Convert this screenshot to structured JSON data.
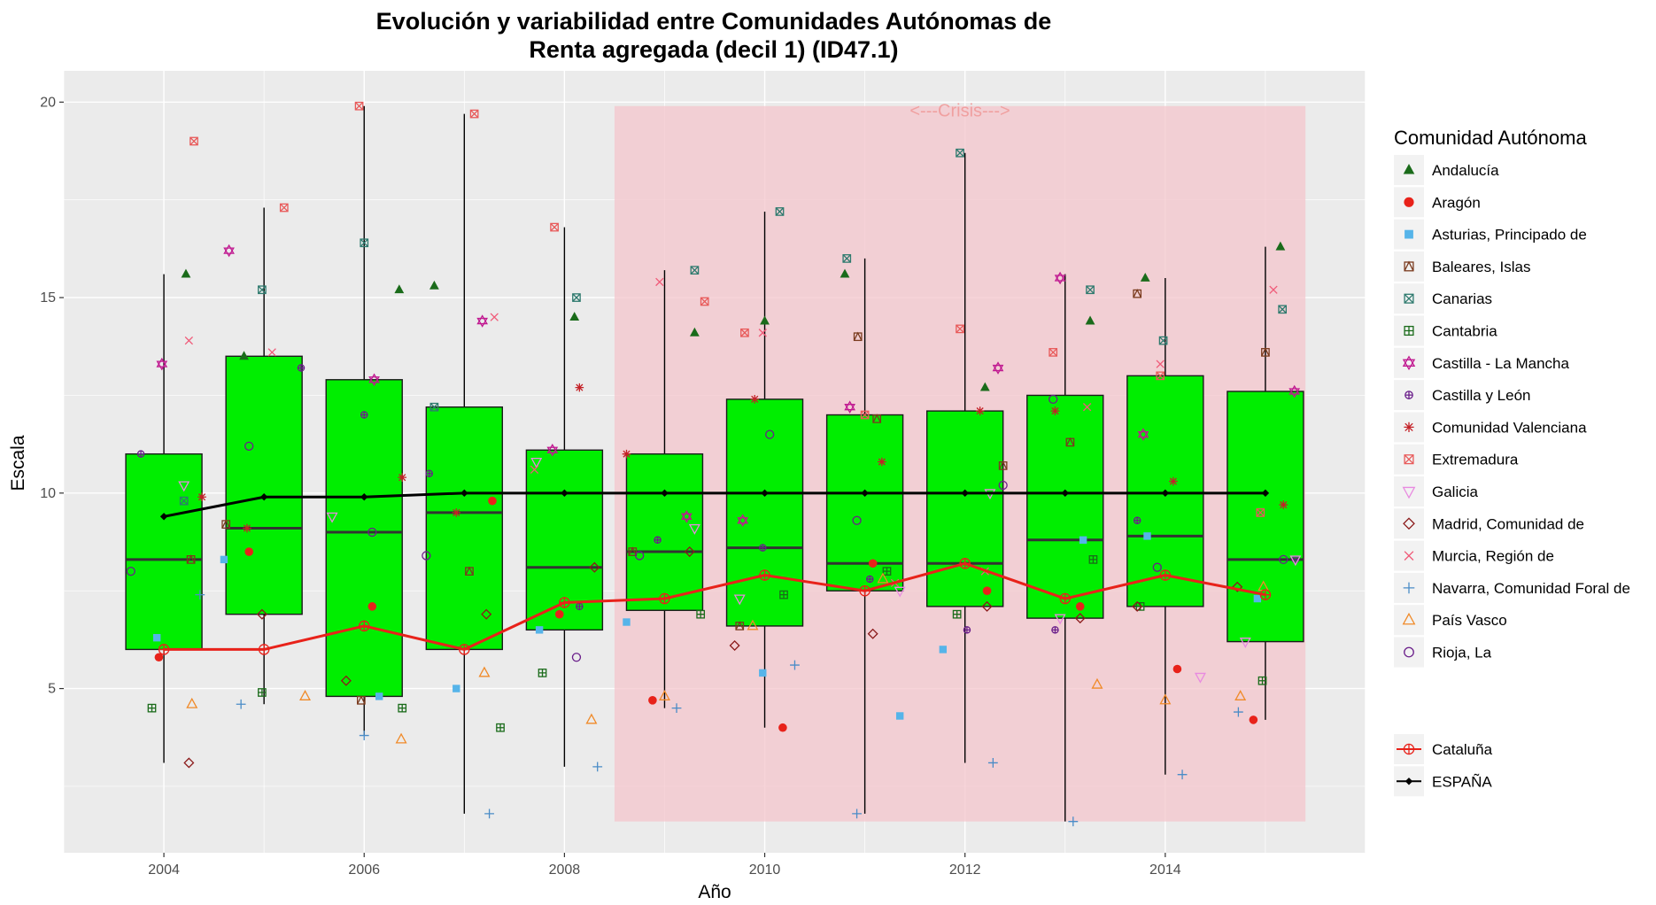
{
  "chart_data": {
    "type": "box",
    "title": [
      "Evolución y variabilidad entre Comunidades Autónomas de",
      "Renta agregada (decil 1) (ID47.1)"
    ],
    "xlabel": "Año",
    "ylabel": "Escala",
    "xlim": [
      2003.0,
      2016.0
    ],
    "ylim": [
      0.8,
      20.8
    ],
    "x_ticks": [
      2004,
      2006,
      2008,
      2010,
      2012,
      2014
    ],
    "y_ticks": [
      5,
      10,
      15,
      20
    ],
    "grid": true,
    "background_color": "#ebebeb",
    "box_fill": "#00ee00",
    "crisis_band": {
      "label": "<---Crisis--->",
      "x_start": 2008.5,
      "x_end": 2015.4,
      "y_min": 1.6,
      "y_max": 19.9,
      "color": "#f4c6cc"
    },
    "boxes": [
      {
        "year": 2004,
        "min": 3.1,
        "q1": 6.0,
        "median": 8.3,
        "q3": 11.0,
        "max": 15.6
      },
      {
        "year": 2005,
        "min": 4.6,
        "q1": 6.9,
        "median": 9.1,
        "q3": 13.5,
        "max": 17.3
      },
      {
        "year": 2006,
        "min": 3.8,
        "q1": 4.8,
        "median": 9.0,
        "q3": 12.9,
        "max": 19.9
      },
      {
        "year": 2007,
        "min": 1.8,
        "q1": 6.0,
        "median": 9.5,
        "q3": 12.2,
        "max": 19.7
      },
      {
        "year": 2008,
        "min": 3.0,
        "q1": 6.5,
        "median": 8.1,
        "q3": 11.1,
        "max": 16.8
      },
      {
        "year": 2009,
        "min": 4.5,
        "q1": 7.0,
        "median": 8.5,
        "q3": 11.0,
        "max": 15.7
      },
      {
        "year": 2010,
        "min": 4.0,
        "q1": 6.6,
        "median": 8.6,
        "q3": 12.4,
        "max": 17.2
      },
      {
        "year": 2011,
        "min": 1.8,
        "q1": 7.5,
        "median": 8.2,
        "q3": 12.0,
        "max": 16.0
      },
      {
        "year": 2012,
        "min": 3.1,
        "q1": 7.1,
        "median": 8.2,
        "q3": 12.1,
        "max": 18.7
      },
      {
        "year": 2013,
        "min": 1.6,
        "q1": 6.8,
        "median": 8.8,
        "q3": 12.5,
        "max": 15.6
      },
      {
        "year": 2014,
        "min": 2.8,
        "q1": 7.1,
        "median": 8.9,
        "q3": 13.0,
        "max": 15.5
      },
      {
        "year": 2015,
        "min": 4.2,
        "q1": 6.2,
        "median": 8.3,
        "q3": 12.6,
        "max": 16.3
      }
    ],
    "lines": [
      {
        "name": "ESPAÑA",
        "color": "#000000",
        "shape": "diamond",
        "x": [
          2004,
          2005,
          2006,
          2007,
          2008,
          2009,
          2010,
          2011,
          2012,
          2013,
          2014,
          2015
        ],
        "y": [
          9.4,
          9.9,
          9.9,
          10.0,
          10.0,
          10.0,
          10.0,
          10.0,
          10.0,
          10.0,
          10.0,
          10.0
        ]
      },
      {
        "name": "Cataluña",
        "color": "#e8221a",
        "shape": "circleplus",
        "x": [
          2004,
          2005,
          2006,
          2007,
          2008,
          2009,
          2010,
          2011,
          2012,
          2013,
          2014,
          2015
        ],
        "y": [
          6.0,
          6.0,
          6.6,
          6.0,
          7.2,
          7.3,
          7.9,
          7.5,
          8.2,
          7.3,
          7.9,
          7.4
        ]
      }
    ],
    "series": [
      {
        "name": "Andalucía",
        "color": "#1a6b1a",
        "shape": "triangle-filled",
        "x": [
          2004.22,
          2004.8,
          2006.35,
          2006.7,
          2008.1,
          2009.3,
          2010.0,
          2010.8,
          2012.2,
          2013.25,
          2013.8,
          2015.15
        ],
        "y": [
          15.6,
          13.5,
          15.2,
          15.3,
          14.5,
          14.1,
          14.4,
          15.6,
          12.7,
          14.4,
          15.5,
          16.3
        ]
      },
      {
        "name": "Aragón",
        "color": "#e8221a",
        "shape": "circle-filled",
        "x": [
          2003.95,
          2004.85,
          2006.08,
          2007.28,
          2007.95,
          2008.88,
          2010.18,
          2011.08,
          2012.22,
          2013.15,
          2014.12,
          2014.88
        ],
        "y": [
          5.8,
          8.5,
          7.1,
          9.8,
          6.9,
          4.7,
          4.0,
          8.2,
          7.5,
          7.1,
          5.5,
          4.2
        ]
      },
      {
        "name": "Asturias, Principado de",
        "color": "#56b4e9",
        "shape": "square-filled",
        "x": [
          2003.93,
          2004.6,
          2006.15,
          2006.92,
          2007.75,
          2008.62,
          2009.98,
          2011.35,
          2011.78,
          2013.18,
          2013.82,
          2014.92
        ],
        "y": [
          6.3,
          8.3,
          4.8,
          5.0,
          6.5,
          6.7,
          5.4,
          4.3,
          6.0,
          8.8,
          8.9,
          7.3
        ]
      },
      {
        "name": "Baleares, Islas",
        "color": "#7a3b1e",
        "shape": "squaretriangle",
        "x": [
          2004.27,
          2004.62,
          2005.97,
          2007.05,
          2008.68,
          2009.75,
          2010.93,
          2011.12,
          2012.38,
          2013.05,
          2013.72,
          2015.0
        ],
        "y": [
          8.3,
          9.2,
          4.7,
          8.0,
          8.5,
          6.6,
          14.0,
          11.9,
          10.7,
          11.3,
          15.1,
          13.6
        ]
      },
      {
        "name": "Canarias",
        "color": "#2e7a6e",
        "shape": "squarecross",
        "x": [
          2004.2,
          2004.98,
          2006.0,
          2006.7,
          2008.12,
          2009.3,
          2010.15,
          2010.82,
          2011.95,
          2013.25,
          2013.98,
          2015.17
        ],
        "y": [
          9.8,
          15.2,
          16.4,
          12.2,
          15.0,
          15.7,
          17.2,
          16.0,
          18.7,
          15.2,
          13.9,
          14.7
        ]
      },
      {
        "name": "Cantabria",
        "color": "#1a6b1a",
        "shape": "squareplus",
        "x": [
          2003.88,
          2004.98,
          2006.38,
          2007.36,
          2007.78,
          2009.36,
          2010.19,
          2011.22,
          2011.92,
          2013.28,
          2013.75,
          2014.97
        ],
        "y": [
          4.5,
          4.9,
          4.5,
          4.0,
          5.4,
          6.9,
          7.4,
          8.0,
          6.9,
          8.3,
          7.1,
          5.2
        ]
      },
      {
        "name": "Castilla - La Mancha",
        "color": "#c01890",
        "shape": "star6",
        "x": [
          2003.98,
          2004.65,
          2006.1,
          2007.18,
          2007.88,
          2009.22,
          2009.78,
          2010.85,
          2012.33,
          2012.95,
          2013.78,
          2015.29
        ],
        "y": [
          13.3,
          16.2,
          12.9,
          14.4,
          11.1,
          9.4,
          9.3,
          12.2,
          13.2,
          15.5,
          11.5,
          12.6
        ]
      },
      {
        "name": "Castilla y León",
        "color": "#6a1e8a",
        "shape": "circleplus-small",
        "x": [
          2003.77,
          2005.37,
          2006.0,
          2006.65,
          2008.15,
          2008.93,
          2009.98,
          2011.05,
          2012.02,
          2012.9,
          2013.72,
          2015.3
        ],
        "y": [
          11.0,
          13.2,
          12.0,
          10.5,
          7.1,
          8.8,
          8.6,
          7.8,
          6.5,
          6.5,
          9.3,
          8.3
        ]
      },
      {
        "name": "Comunidad Valenciana",
        "color": "#c42127",
        "shape": "asterisk",
        "x": [
          2004.38,
          2004.83,
          2006.38,
          2006.92,
          2008.15,
          2008.62,
          2009.9,
          2011.17,
          2012.15,
          2012.9,
          2014.08,
          2015.18
        ],
        "y": [
          9.9,
          9.1,
          10.4,
          9.5,
          12.7,
          11.0,
          12.4,
          10.8,
          12.1,
          12.1,
          10.3,
          9.7
        ]
      },
      {
        "name": "Extremadura",
        "color": "#e85a5a",
        "shape": "squarecross",
        "x": [
          2004.3,
          2005.2,
          2005.95,
          2007.1,
          2007.9,
          2009.4,
          2009.8,
          2011.0,
          2011.95,
          2012.88,
          2013.95,
          2014.95
        ],
        "y": [
          19.0,
          17.3,
          19.9,
          19.7,
          16.8,
          14.9,
          14.1,
          12.0,
          14.2,
          13.6,
          13.0,
          9.5
        ]
      },
      {
        "name": "Galicia",
        "color": "#e88ae0",
        "shape": "triangle-down",
        "x": [
          2004.2,
          2005.68,
          2007.72,
          2009.3,
          2009.75,
          2011.35,
          2012.25,
          2012.95,
          2014.35,
          2014.8,
          2015.3
        ],
        "y": [
          10.2,
          9.4,
          10.8,
          9.1,
          7.3,
          7.5,
          10.0,
          6.8,
          5.3,
          6.2,
          8.3
        ]
      },
      {
        "name": "Madrid, Comunidad de",
        "color": "#8b1a1a",
        "shape": "diamond-open",
        "x": [
          2004.25,
          2004.98,
          2005.82,
          2007.22,
          2008.3,
          2009.25,
          2009.7,
          2011.08,
          2012.22,
          2013.15,
          2013.72,
          2014.72
        ],
        "y": [
          3.1,
          6.9,
          5.2,
          6.9,
          8.1,
          8.5,
          6.1,
          6.4,
          7.1,
          6.8,
          7.1,
          7.6
        ]
      },
      {
        "name": "Murcia, Región de",
        "color": "#f05a78",
        "shape": "cross",
        "x": [
          2004.25,
          2005.08,
          2007.3,
          2007.7,
          2008.95,
          2009.98,
          2011.3,
          2012.2,
          2013.22,
          2013.95,
          2015.08
        ],
        "y": [
          13.9,
          13.6,
          14.5,
          10.6,
          15.4,
          14.1,
          7.7,
          8.0,
          12.2,
          13.3,
          15.2
        ]
      },
      {
        "name": "Navarra, Comunidad Foral de",
        "color": "#4a8cc7",
        "shape": "plus",
        "x": [
          2004.36,
          2004.77,
          2006.0,
          2007.25,
          2008.33,
          2009.12,
          2010.3,
          2010.92,
          2012.28,
          2013.08,
          2014.17,
          2014.73
        ],
        "y": [
          7.4,
          4.6,
          3.8,
          1.8,
          3.0,
          4.5,
          5.6,
          1.8,
          3.1,
          1.6,
          2.8,
          4.4
        ]
      },
      {
        "name": "País Vasco",
        "color": "#f08a28",
        "shape": "triangle-open",
        "x": [
          2004.28,
          2005.41,
          2006.37,
          2007.2,
          2008.27,
          2009.0,
          2009.88,
          2011.18,
          2013.32,
          2014.0,
          2014.75,
          2014.98
        ],
        "y": [
          4.6,
          4.8,
          3.7,
          5.4,
          4.2,
          4.8,
          6.6,
          7.8,
          5.1,
          4.7,
          4.8,
          7.6
        ]
      },
      {
        "name": "Rioja, La",
        "color": "#6a1e8a",
        "shape": "circle-open",
        "x": [
          2003.67,
          2004.85,
          2006.08,
          2006.62,
          2008.12,
          2008.75,
          2010.05,
          2010.92,
          2012.38,
          2012.88,
          2013.92,
          2015.18
        ],
        "y": [
          8.0,
          11.2,
          9.0,
          8.4,
          5.8,
          8.4,
          11.5,
          9.3,
          10.2,
          12.4,
          8.1,
          8.3
        ]
      }
    ],
    "legend": {
      "title": "Comunidad Autónoma",
      "position": "right",
      "items": [
        {
          "label": "Andalucía",
          "shape": "triangle-filled",
          "color": "#1a6b1a"
        },
        {
          "label": "Aragón",
          "shape": "circle-filled",
          "color": "#e8221a"
        },
        {
          "label": "Asturias, Principado de",
          "shape": "square-filled",
          "color": "#56b4e9"
        },
        {
          "label": "Baleares, Islas",
          "shape": "squaretriangle",
          "color": "#7a3b1e"
        },
        {
          "label": "Canarias",
          "shape": "squarecross",
          "color": "#2e7a6e"
        },
        {
          "label": "Cantabria",
          "shape": "squareplus",
          "color": "#1a6b1a"
        },
        {
          "label": "Castilla - La Mancha",
          "shape": "star6",
          "color": "#c01890"
        },
        {
          "label": "Castilla y León",
          "shape": "circleplus-small",
          "color": "#6a1e8a"
        },
        {
          "label": "Comunidad Valenciana",
          "shape": "asterisk",
          "color": "#c42127"
        },
        {
          "label": "Extremadura",
          "shape": "squarecross",
          "color": "#e85a5a"
        },
        {
          "label": "Galicia",
          "shape": "triangle-down",
          "color": "#e88ae0"
        },
        {
          "label": "Madrid, Comunidad de",
          "shape": "diamond-open",
          "color": "#8b1a1a"
        },
        {
          "label": "Murcia, Región de",
          "shape": "cross",
          "color": "#f05a78"
        },
        {
          "label": "Navarra, Comunidad Foral de",
          "shape": "plus",
          "color": "#4a8cc7"
        },
        {
          "label": "País Vasco",
          "shape": "triangle-open",
          "color": "#f08a28"
        },
        {
          "label": "Rioja, La",
          "shape": "circle-open",
          "color": "#6a1e8a"
        }
      ],
      "extra_items": [
        {
          "label": "Cataluña",
          "shape": "circleplus",
          "color": "#e8221a"
        },
        {
          "label": "ESPAÑA",
          "shape": "diamond",
          "color": "#000000"
        }
      ]
    }
  }
}
